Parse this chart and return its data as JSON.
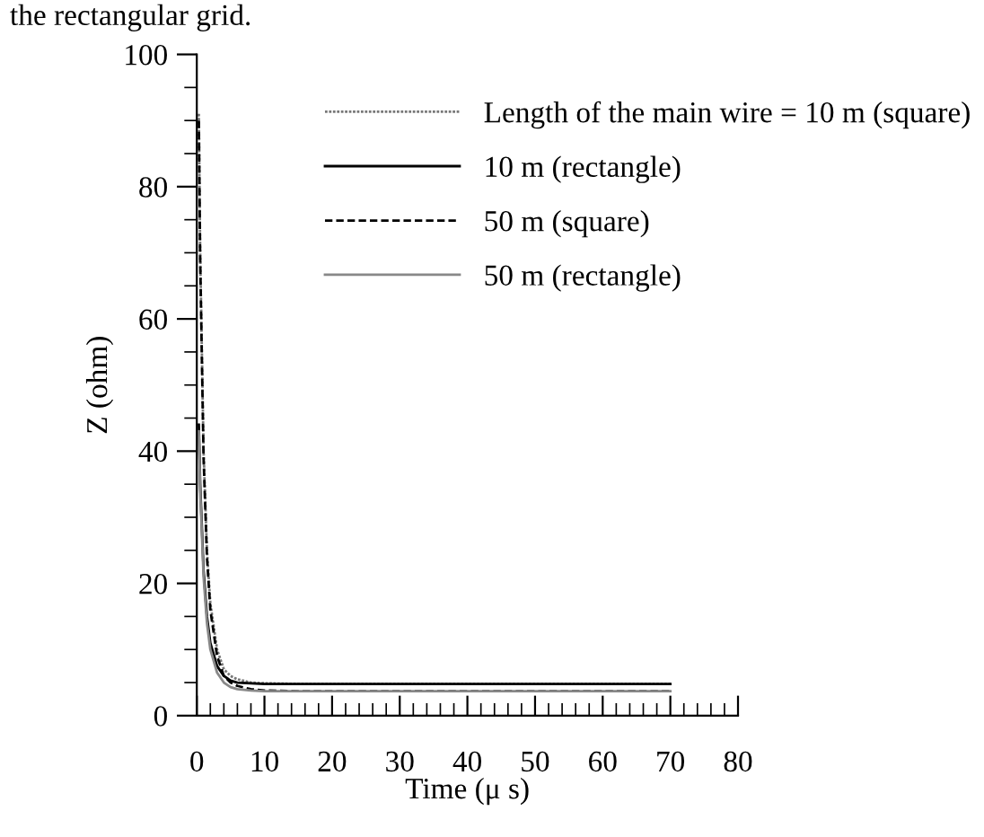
{
  "chart_data": {
    "type": "line",
    "xlabel": "Time (μ s)",
    "ylabel": "Z (ohm)",
    "annotations": [
      "the rectangular grid."
    ],
    "xlim": [
      0,
      80
    ],
    "xticks": [
      0,
      10,
      20,
      30,
      40,
      50,
      60,
      70,
      80
    ],
    "ylim": [
      0,
      100
    ],
    "yticks": [
      0,
      20,
      40,
      60,
      80,
      100
    ],
    "grid": false,
    "legend": "top right",
    "marker": "none",
    "series": [
      {
        "name": "Length of the main wire = 10 m (square)",
        "color": "#777777",
        "line_style": "dotted",
        "x": [
          0.3,
          0.5,
          1,
          1.5,
          2,
          3,
          4,
          5,
          6,
          8,
          10,
          15,
          70
        ],
        "values": [
          91,
          70,
          40,
          25,
          17,
          10,
          7,
          6,
          5.5,
          5,
          4.9,
          4.8,
          4.8
        ]
      },
      {
        "name": "10 m (rectangle)",
        "color": "#000000",
        "line_style": "solid",
        "x": [
          0.3,
          0.5,
          1,
          1.5,
          2,
          3,
          4,
          5,
          6,
          8,
          10,
          15,
          70
        ],
        "values": [
          44,
          35,
          22,
          15,
          11,
          7.5,
          6,
          5.3,
          5,
          4.9,
          4.8,
          4.8,
          4.8
        ]
      },
      {
        "name": "50 m (square)",
        "color": "#000000",
        "line_style": "dashed",
        "x": [
          0.3,
          0.5,
          1,
          1.5,
          2,
          3,
          4,
          5,
          6,
          8,
          10,
          15,
          70
        ],
        "values": [
          90,
          69,
          39,
          24,
          16,
          9,
          6,
          5,
          4.5,
          4,
          3.8,
          3.7,
          3.7
        ]
      },
      {
        "name": "50 m (rectangle)",
        "color": "#888888",
        "line_style": "solid",
        "x": [
          0.3,
          0.5,
          1,
          1.5,
          2,
          3,
          4,
          5,
          6,
          8,
          10,
          15,
          70
        ],
        "values": [
          43,
          34,
          21,
          14,
          10,
          6.5,
          5,
          4.3,
          4,
          3.8,
          3.7,
          3.7,
          3.7
        ]
      }
    ]
  }
}
